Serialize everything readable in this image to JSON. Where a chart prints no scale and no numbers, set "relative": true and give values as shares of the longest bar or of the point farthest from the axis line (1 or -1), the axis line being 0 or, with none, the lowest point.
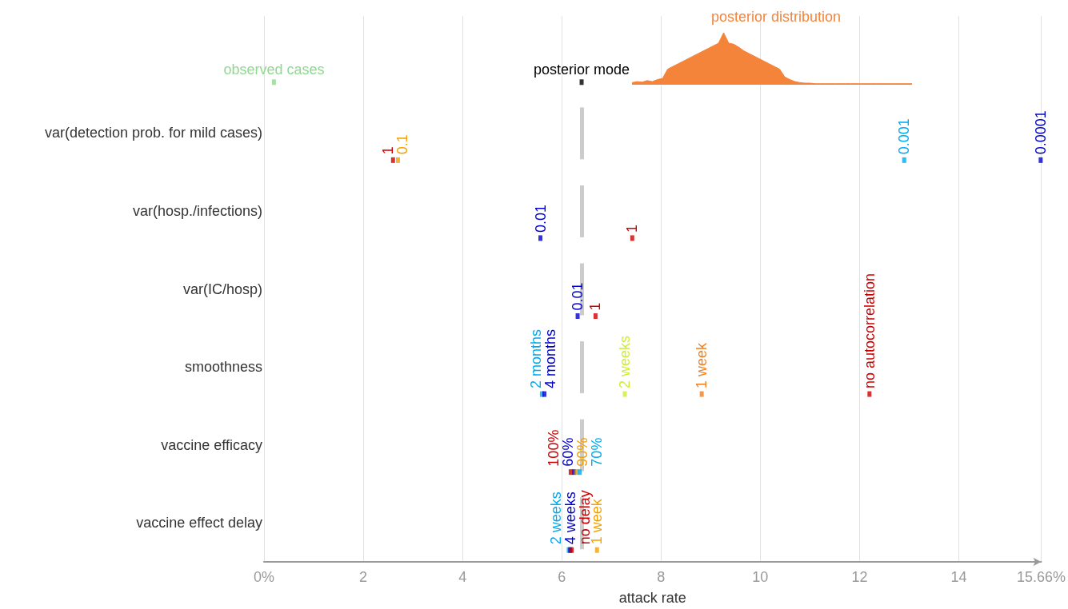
{
  "chart_data": [
    {
      "type": "area",
      "title": "posterior distribution",
      "relative": true,
      "color": "#f4843a",
      "categories": [
        null,
        null,
        null,
        null,
        null,
        null,
        null,
        null,
        null,
        null,
        null,
        null,
        null,
        null,
        null,
        null,
        null,
        null,
        null,
        null,
        null,
        null,
        null,
        null,
        null,
        null,
        null,
        null,
        null,
        null,
        null,
        null,
        null,
        null,
        null,
        null,
        null,
        null,
        null,
        null,
        null,
        null,
        null,
        null,
        null,
        null,
        null,
        null,
        null,
        null,
        null,
        null,
        null,
        null,
        null,
        null
      ],
      "values": [
        0.04,
        0.06,
        0.05,
        0.08,
        0.06,
        0.1,
        0.12,
        0.3,
        0.35,
        0.4,
        0.45,
        0.5,
        0.55,
        0.6,
        0.65,
        0.7,
        0.75,
        0.8,
        1.0,
        0.8,
        0.78,
        0.72,
        0.65,
        0.6,
        0.55,
        0.5,
        0.45,
        0.4,
        0.35,
        0.3,
        0.15,
        0.1,
        0.06,
        0.04,
        0.03,
        0.03,
        0.02,
        0.02,
        0.02,
        0.02,
        0.02,
        0.02,
        0.02,
        0.02,
        0.02,
        0.02,
        0.02,
        0.02,
        0.02,
        0.02,
        0.02,
        0.02,
        0.02,
        0.02,
        0.02,
        0.02
      ]
    },
    {
      "type": "scatter",
      "orientation": "horizontal",
      "xlabel": "attack rate",
      "grid": "x",
      "legend": false,
      "marker": "square",
      "categories": [
        null,
        "var(detection prob. for mild cases)",
        "var(hosp./infections)",
        "var(IC/hosp)",
        "smoothness",
        "vaccine efficacy",
        "vaccine effect delay"
      ],
      "xlim": [
        0,
        15.66
      ],
      "xticks": [
        {
          "value": 0,
          "label": "0%"
        },
        2,
        4,
        6,
        8,
        10,
        12,
        14,
        {
          "value": 15.66,
          "label": "15.66%"
        }
      ],
      "ref_lines": [
        {
          "axis": "x",
          "value": 6.4,
          "color": "#cccccc"
        }
      ],
      "series": [
        {
          "name": "observed cases",
          "color": "#8fd98f",
          "values": [
            0.2,
            null,
            null,
            null,
            null,
            null,
            null
          ]
        },
        {
          "name": "posterior mode",
          "color": "#000000",
          "values": [
            6.4,
            null,
            null,
            null,
            null,
            null,
            null
          ]
        },
        {
          "name": "1",
          "color": "#cc0000",
          "values": [
            null,
            2.6,
            null,
            null,
            null,
            null,
            null
          ]
        },
        {
          "name": "0.1",
          "color": "#f5a000",
          "values": [
            null,
            2.7,
            null,
            null,
            null,
            null,
            null
          ]
        },
        {
          "name": "0.001",
          "color": "#00aaee",
          "values": [
            null,
            12.9,
            null,
            null,
            null,
            null,
            null
          ]
        },
        {
          "name": "0.0001",
          "color": "#0000cc",
          "values": [
            null,
            15.65,
            null,
            null,
            null,
            null,
            null
          ]
        },
        {
          "name": "0.01",
          "color": "#0000cc",
          "values": [
            null,
            null,
            5.57,
            null,
            null,
            null,
            null
          ]
        },
        {
          "name": "1",
          "color": "#cc0000",
          "values": [
            null,
            null,
            7.42,
            null,
            null,
            null,
            null
          ]
        },
        {
          "name": "0.01",
          "color": "#0000cc",
          "values": [
            null,
            null,
            null,
            6.32,
            null,
            null,
            null
          ]
        },
        {
          "name": "1",
          "color": "#cc0000",
          "values": [
            null,
            null,
            null,
            6.68,
            null,
            null,
            null
          ]
        },
        {
          "name": "2 months",
          "color": "#00aaee",
          "values": [
            null,
            null,
            null,
            null,
            5.6,
            null,
            null
          ]
        },
        {
          "name": "4 months",
          "color": "#0000cc",
          "values": [
            null,
            null,
            null,
            null,
            5.65,
            null,
            null
          ]
        },
        {
          "name": "2 weeks",
          "color": "#ccee33",
          "values": [
            null,
            null,
            null,
            null,
            7.27,
            null,
            null
          ]
        },
        {
          "name": "1 week",
          "color": "#f07f20",
          "values": [
            null,
            null,
            null,
            null,
            8.82,
            null,
            null
          ]
        },
        {
          "name": "no autocorrelation",
          "color": "#cc0000",
          "values": [
            null,
            null,
            null,
            null,
            12.2,
            null,
            null
          ]
        },
        {
          "name": "100%",
          "color": "#cc0000",
          "values": [
            null,
            null,
            null,
            null,
            null,
            6.18,
            null
          ]
        },
        {
          "name": "60%",
          "color": "#0000cc",
          "values": [
            null,
            null,
            null,
            null,
            null,
            6.25,
            null
          ]
        },
        {
          "name": "90%",
          "color": "#f5a000",
          "values": [
            null,
            null,
            null,
            null,
            null,
            6.3,
            null
          ]
        },
        {
          "name": "70%",
          "color": "#00aaee",
          "values": [
            null,
            null,
            null,
            null,
            null,
            6.36,
            null
          ]
        },
        {
          "name": "2 weeks",
          "color": "#00aaee",
          "values": [
            null,
            null,
            null,
            null,
            null,
            null,
            6.14
          ]
        },
        {
          "name": "4 weeks",
          "color": "#0000cc",
          "values": [
            null,
            null,
            null,
            null,
            null,
            null,
            6.17
          ]
        },
        {
          "name": "no delay",
          "color": "#cc0000",
          "values": [
            null,
            null,
            null,
            null,
            null,
            null,
            6.2
          ]
        },
        {
          "name": "1 week",
          "color": "#f5a000",
          "values": [
            null,
            null,
            null,
            null,
            null,
            null,
            6.71
          ]
        }
      ]
    }
  ]
}
